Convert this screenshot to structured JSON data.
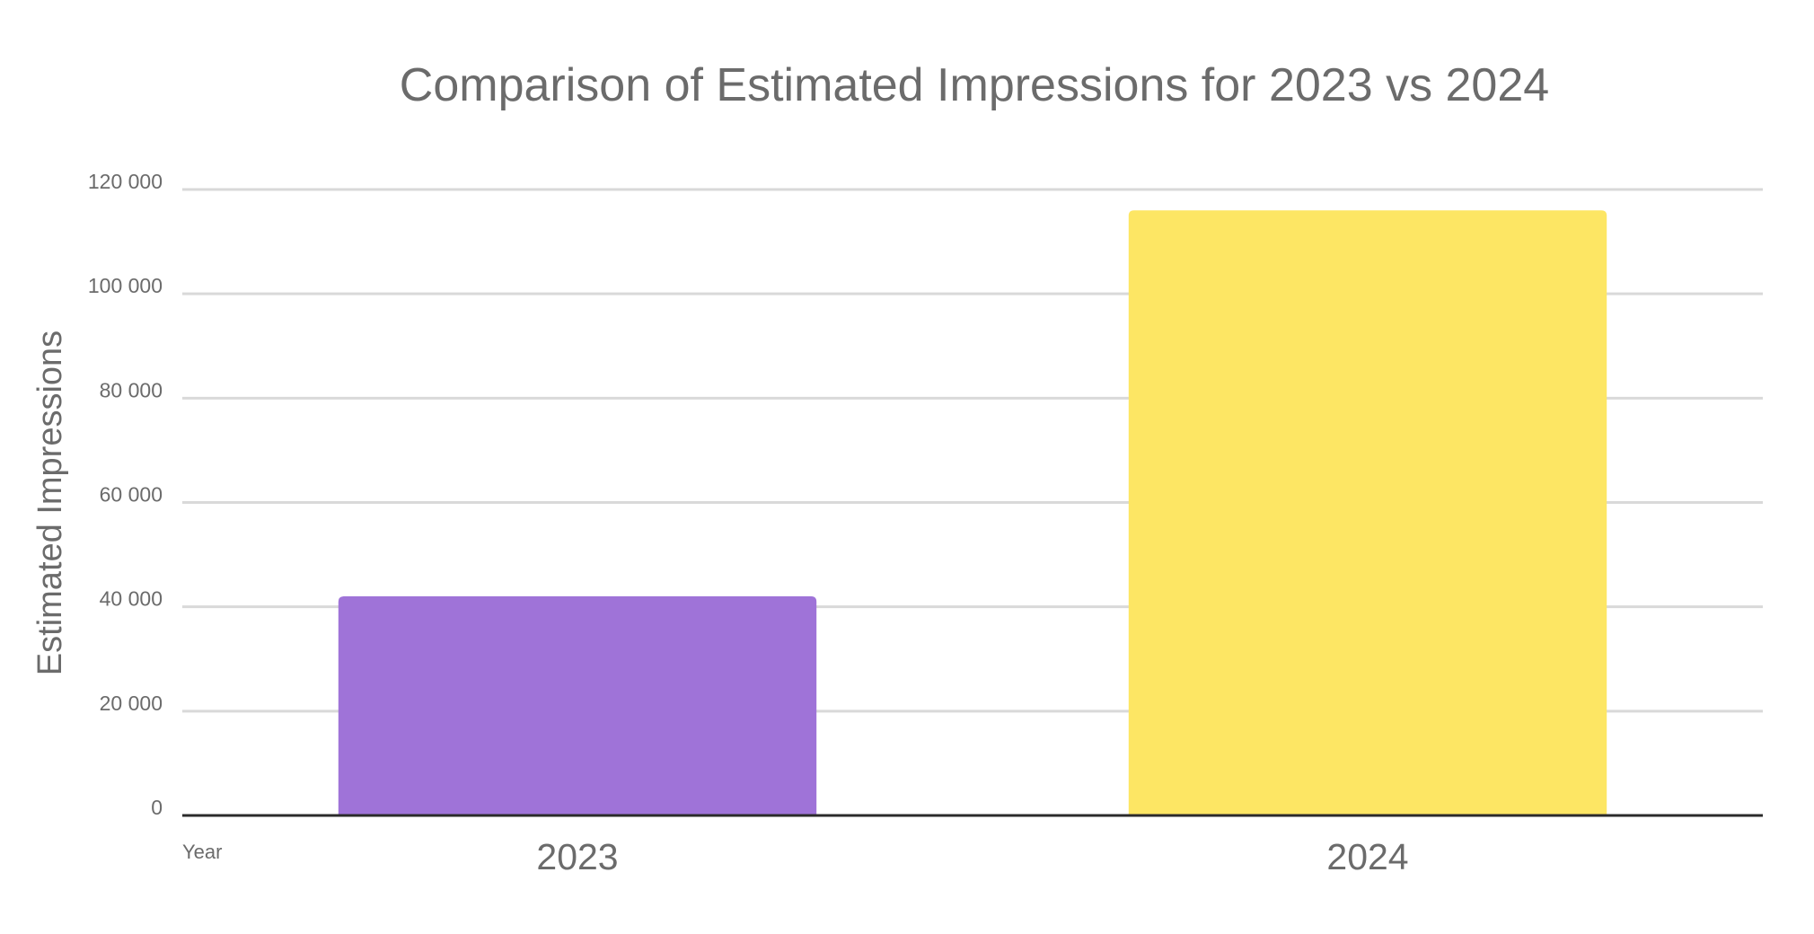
{
  "chart_data": {
    "type": "bar",
    "title": "Comparison of Estimated Impressions for 2023 vs 2024",
    "xlabel": "Year",
    "ylabel": "Estimated Impressions",
    "categories": [
      "2023",
      "2024"
    ],
    "values": [
      42000,
      116000
    ],
    "colors": [
      "#9f73d8",
      "#fde664"
    ],
    "ylim": [
      0,
      120000
    ],
    "yticks": [
      0,
      20000,
      40000,
      60000,
      80000,
      100000,
      120000
    ],
    "ytick_labels": [
      "0",
      "20 000",
      "40 000",
      "60 000",
      "80 000",
      "100 000",
      "120 000"
    ],
    "grid": true,
    "legend": "none"
  }
}
